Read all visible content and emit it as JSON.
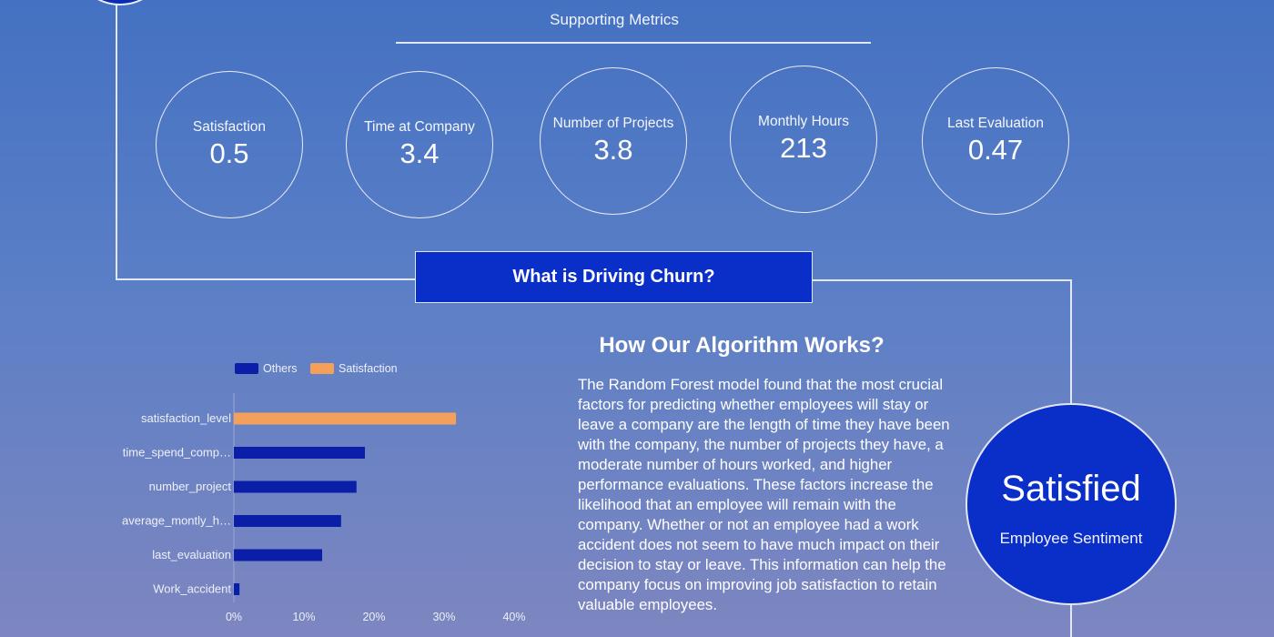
{
  "metrics": {
    "title": "Supporting Metrics",
    "items": [
      {
        "label": "Satisfaction",
        "value": "0.5"
      },
      {
        "label": "Time at Company",
        "value": "3.4"
      },
      {
        "label": "Number of Projects",
        "value": "3.8"
      },
      {
        "label": "Monthly Hours",
        "value": "213"
      },
      {
        "label": "Last Evaluation",
        "value": "0.47"
      }
    ]
  },
  "driving_banner": "What is Driving Churn?",
  "algorithm": {
    "title": "How Our Algorithm Works?",
    "text": "The Random Forest model found that the most crucial factors for predicting whether employees will stay or leave a company are the length of time they have been with the company, the number of projects they have, a moderate number of hours worked, and higher performance evaluations. These factors increase the likelihood that an employee will remain with the company. Whether or not an employee had a work accident does not seem to have much impact on their decision to stay or leave. This information can help the company focus on improving job satisfaction to retain valuable employees."
  },
  "sentiment": {
    "value": "Satisfied",
    "label": "Employee Sentiment"
  },
  "colors": {
    "others": "#0a1ea8",
    "satisfaction": "#f5a05a",
    "accent": "#0a2ec8"
  },
  "chart_data": {
    "type": "bar",
    "orientation": "horizontal",
    "categories": [
      "satisfaction_level",
      "time_spend_comp…",
      "number_project",
      "average_montly_h…",
      "last_evaluation",
      "Work_accident"
    ],
    "series": [
      {
        "name": "Others",
        "values": [
          null,
          18.7,
          17.5,
          15.3,
          12.6,
          0.8
        ]
      },
      {
        "name": "Satisfaction",
        "values": [
          31.7,
          null,
          null,
          null,
          null,
          null
        ]
      }
    ],
    "xticks": [
      "0%",
      "10%",
      "20%",
      "30%",
      "40%"
    ],
    "xlim": [
      0,
      40
    ],
    "legend_position": "top",
    "grid": false
  }
}
